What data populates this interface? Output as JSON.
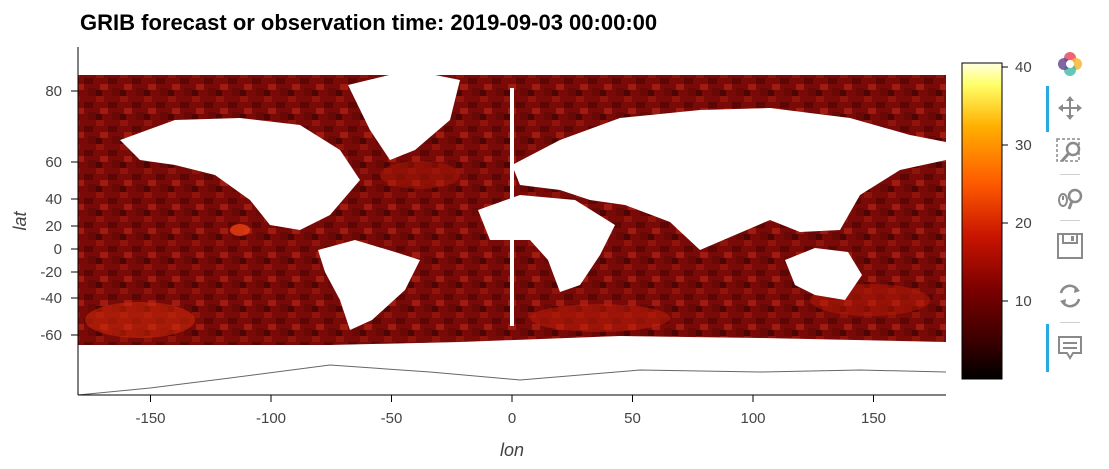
{
  "chart_data": {
    "type": "heatmap",
    "title": "GRIB forecast or observation time: 2019-09-03 00:00:00",
    "xlabel": "lon",
    "ylabel": "lat",
    "xlim": [
      -180,
      180
    ],
    "ylim": [
      -90,
      90
    ],
    "x_ticks": [
      -150,
      -100,
      -50,
      0,
      50,
      100,
      150
    ],
    "y_ticks": [
      80,
      60,
      40,
      20,
      0,
      -20,
      -40,
      -60
    ],
    "colorbar": {
      "range": [
        0,
        41
      ],
      "ticks": [
        10,
        20,
        30,
        40
      ],
      "colormap": [
        "#000000",
        "#3a0000",
        "#7a0000",
        "#c81400",
        "#ff5a00",
        "#ffb000",
        "#ffff66",
        "#ffffe0"
      ]
    },
    "ocean_color_typical": "#7a0a08",
    "land_color": "#ffffff"
  },
  "toolbar": {
    "tools": [
      "bokeh-logo",
      "pan-tool",
      "box-zoom-tool",
      "wheel-zoom-tool",
      "save-tool",
      "reset-tool",
      "hover-tool"
    ]
  }
}
